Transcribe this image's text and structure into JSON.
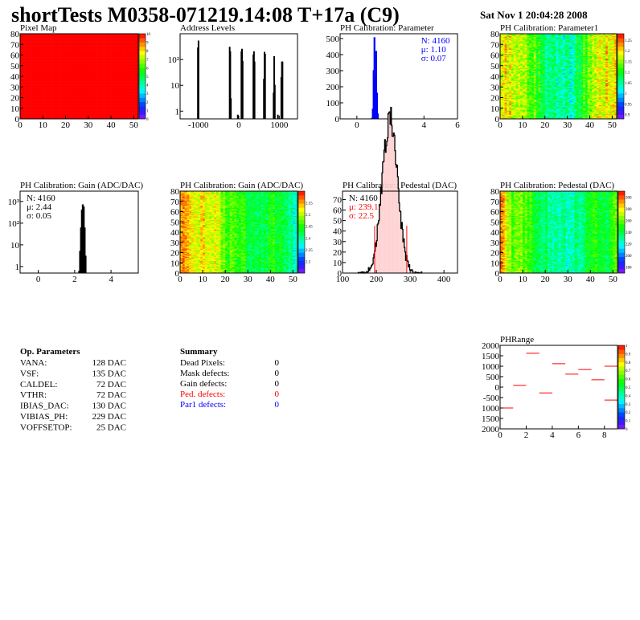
{
  "header": {
    "title": "shortTests M0358-071219.14:08 T+17a (C9)",
    "date": "Sat Nov  1 20:04:28 2008"
  },
  "chart_data": [
    {
      "type": "heatmap",
      "title": "Pixel Map",
      "xlim": [
        0,
        52
      ],
      "ylim": [
        0,
        80
      ],
      "zlim": [
        0,
        10
      ],
      "xticks": [
        0,
        10,
        20,
        30,
        40,
        50
      ],
      "yticks": [
        0,
        10,
        20,
        30,
        40,
        50,
        60,
        70,
        80
      ],
      "zticks": [
        0,
        1,
        2,
        3,
        4,
        5,
        6,
        7,
        8,
        9,
        10
      ],
      "profile": [
        10,
        10
      ],
      "noise": 0
    },
    {
      "type": "bar",
      "title": "Address Levels",
      "log_y": true,
      "xlim": [
        -1450,
        1450
      ],
      "ylim": [
        0.5,
        1000
      ],
      "xticks": [
        -1000,
        0,
        1000
      ],
      "yticks": [
        {
          "v": 1,
          "l": "1"
        },
        {
          "v": 10,
          "l": "10"
        },
        {
          "v": 100,
          "l": "10²"
        }
      ],
      "bins": [
        [
          -1010,
          280
        ],
        [
          -995,
          520
        ],
        [
          -225,
          300
        ],
        [
          -210,
          200
        ],
        [
          -195,
          3
        ],
        [
          -25,
          0.7
        ],
        [
          65,
          200
        ],
        [
          80,
          250
        ],
        [
          95,
          85
        ],
        [
          360,
          150
        ],
        [
          375,
          200
        ],
        [
          390,
          80
        ],
        [
          620,
          17
        ],
        [
          635,
          190
        ],
        [
          650,
          160
        ],
        [
          860,
          5
        ],
        [
          875,
          130
        ],
        [
          890,
          10
        ],
        [
          965,
          0.7
        ],
        [
          1050,
          20
        ],
        [
          1065,
          80
        ],
        [
          1080,
          80
        ]
      ],
      "binwidth": 15,
      "color": "#000000"
    },
    {
      "type": "bar",
      "title": "PH Calibration: Parameter",
      "xlim": [
        -1,
        6
      ],
      "ylim": [
        0,
        530
      ],
      "xticks": [
        0,
        2,
        4,
        6
      ],
      "yticks": [
        {
          "v": 0,
          "l": "0"
        },
        {
          "v": 100,
          "l": "100"
        },
        {
          "v": 200,
          "l": "200"
        },
        {
          "v": 300,
          "l": "300"
        },
        {
          "v": 400,
          "l": "400"
        },
        {
          "v": 500,
          "l": "500"
        }
      ],
      "bins": [
        [
          0.9,
          3
        ],
        [
          0.95,
          60
        ],
        [
          1.0,
          300
        ],
        [
          1.05,
          505
        ],
        [
          1.1,
          260
        ],
        [
          1.15,
          420
        ],
        [
          1.2,
          160
        ],
        [
          1.25,
          30
        ]
      ],
      "binwidth": 0.05,
      "color": "#0000ff",
      "stats": [
        {
          "t": "N: 4160",
          "c": "#0000ff"
        },
        {
          "t": "μ: 1.10",
          "c": "#0000ff"
        },
        {
          "t": "σ: 0.07",
          "c": "#0000ff"
        }
      ],
      "stats_pos": "top-right"
    },
    {
      "type": "heatmap",
      "title": "PH Calibration: Parameter1",
      "xlim": [
        0,
        52
      ],
      "ylim": [
        0,
        80
      ],
      "zlim": [
        0.88,
        1.28
      ],
      "xticks": [
        0,
        10,
        20,
        30,
        40,
        50
      ],
      "yticks": [
        0,
        10,
        20,
        30,
        40,
        50,
        60,
        70,
        80
      ],
      "zticks": [
        0.9,
        0.95,
        1,
        1.05,
        1.1,
        1.15,
        1.2,
        1.25
      ],
      "profile": [
        1.2,
        1.17,
        1.16,
        1.12,
        1.06,
        1.05,
        1.04,
        1.09,
        1.17,
        1.19,
        1.22
      ],
      "noise": 0.05
    },
    {
      "type": "bar",
      "title": "PH Calibration: Gain (ADC/DAC)",
      "log_y": true,
      "xlim": [
        -1,
        5.5
      ],
      "ylim": [
        0.5,
        3000
      ],
      "xticks": [
        0,
        2,
        4
      ],
      "yticks": [
        {
          "v": 1,
          "l": "1"
        },
        {
          "v": 10,
          "l": "10"
        },
        {
          "v": 100,
          "l": "10²"
        },
        {
          "v": 1000,
          "l": "10³"
        }
      ],
      "bins": [
        [
          2.25,
          0.6
        ],
        [
          2.3,
          5
        ],
        [
          2.35,
          60
        ],
        [
          2.4,
          400
        ],
        [
          2.45,
          700
        ],
        [
          2.5,
          550
        ],
        [
          2.55,
          60
        ],
        [
          2.6,
          3
        ]
      ],
      "binwidth": 0.05,
      "color": "#000000",
      "stats": [
        {
          "t": "N: 4160",
          "c": "#000000"
        },
        {
          "t": "μ: 2.44",
          "c": "#000000"
        },
        {
          "t": "σ: 0.05",
          "c": "#000000"
        }
      ],
      "stats_pos": "top-left"
    },
    {
      "type": "heatmap",
      "title": "PH Calibration: Gain (ADC/DAC)",
      "xlim": [
        0,
        52
      ],
      "ylim": [
        0,
        80
      ],
      "zlim": [
        2.25,
        2.6
      ],
      "xticks": [
        0,
        10,
        20,
        30,
        40,
        50
      ],
      "yticks": [
        0,
        10,
        20,
        30,
        40,
        50,
        60,
        70,
        80
      ],
      "zticks": [
        2.3,
        2.35,
        2.4,
        2.45,
        2.5,
        2.55
      ],
      "profile": [
        2.55,
        2.53,
        2.52,
        2.51,
        2.47,
        2.45,
        2.44,
        2.43,
        2.44,
        2.42,
        2.38
      ],
      "noise": 0.035
    },
    {
      "type": "hist",
      "title": "PH Calibration: Pedestal (DAC)",
      "xlim": [
        100,
        440
      ],
      "ylim": [
        0,
        78
      ],
      "xticks": [
        100,
        200,
        300,
        400
      ],
      "yticks": [
        {
          "v": 0,
          "l": "0"
        },
        {
          "v": 10,
          "l": "10"
        },
        {
          "v": 20,
          "l": "20"
        },
        {
          "v": 30,
          "l": "30"
        },
        {
          "v": 40,
          "l": "40"
        },
        {
          "v": 50,
          "l": "50"
        },
        {
          "v": 60,
          "l": "60"
        },
        {
          "v": 70,
          "l": "70"
        }
      ],
      "gauss": {
        "n": 4160,
        "mean": 239.1,
        "sigma": 22.5,
        "binwidth": 2
      },
      "cuts": [
        195,
        290
      ],
      "cut_height": 45,
      "color": "#000000",
      "cut_color": "#ff0000",
      "stats": [
        {
          "t": "N: 4160",
          "c": "#000000"
        },
        {
          "t": "μ: 239.1",
          "c": "#ff0000"
        },
        {
          "t": "σ: 22.5",
          "c": "#ff0000"
        }
      ],
      "stats_pos": "top-left"
    },
    {
      "type": "heatmap",
      "title": "PH Calibration: Pedestal (DAC)",
      "xlim": [
        0,
        52
      ],
      "ylim": [
        0,
        80
      ],
      "zlim": [
        170,
        310
      ],
      "xticks": [
        0,
        10,
        20,
        30,
        40,
        50
      ],
      "yticks": [
        0,
        10,
        20,
        30,
        40,
        50,
        60,
        70,
        80
      ],
      "zticks": [
        180,
        200,
        220,
        240,
        260,
        280,
        300
      ],
      "profile": [
        290,
        255,
        260,
        245,
        235,
        225,
        228,
        232,
        250,
        240,
        260
      ],
      "noise": 14
    },
    {
      "type": "segments",
      "title": "PHRange",
      "xlim": [
        0,
        9
      ],
      "ylim": [
        -2000,
        2000
      ],
      "zlim": [
        0,
        1
      ],
      "xticks": [
        0,
        2,
        4,
        6,
        8
      ],
      "yticks": [
        {
          "v": 2000,
          "l": "2000"
        },
        {
          "v": 1500,
          "l": "1500"
        },
        {
          "v": 1000,
          "l": "1000"
        },
        {
          "v": 500,
          "l": "500"
        },
        {
          "v": 0,
          "l": "0"
        },
        {
          "v": -500,
          "l": "-500"
        },
        {
          "v": -1000,
          "l": "1000"
        },
        {
          "v": -1500,
          "l": "1500"
        },
        {
          "v": -2000,
          "l": "2000"
        }
      ],
      "zticks": [
        0,
        0.1,
        0.2,
        0.3,
        0.4,
        0.5,
        0.6,
        0.7,
        0.8,
        0.9,
        1
      ],
      "segments": [
        [
          0,
          1,
          -1000
        ],
        [
          1,
          2,
          80
        ],
        [
          2,
          3,
          1620
        ],
        [
          3,
          4,
          -280
        ],
        [
          4,
          5,
          1120
        ],
        [
          5,
          6,
          620
        ],
        [
          6,
          7,
          840
        ],
        [
          7,
          8,
          350
        ],
        [
          8,
          9,
          1000
        ],
        [
          8,
          9,
          -620
        ]
      ],
      "color": "#ff0000"
    }
  ],
  "op_parameters": {
    "title": "Op. Parameters",
    "rows": [
      {
        "name": "VANA:",
        "value": "128 DAC"
      },
      {
        "name": "VSF:",
        "value": "135 DAC"
      },
      {
        "name": "CALDEL:",
        "value": "72 DAC"
      },
      {
        "name": "VTHR:",
        "value": "72 DAC"
      },
      {
        "name": "IBIAS_DAC:",
        "value": "130 DAC"
      },
      {
        "name": "VIBIAS_PH:",
        "value": "229 DAC"
      },
      {
        "name": "VOFFSETOP:",
        "value": "25 DAC"
      }
    ]
  },
  "summary": {
    "title": "Summary",
    "rows": [
      {
        "name": "Dead Pixels:",
        "value": "0",
        "color": "#000000"
      },
      {
        "name": "Mask defects:",
        "value": "0",
        "color": "#000000"
      },
      {
        "name": "Gain defects:",
        "value": "0",
        "color": "#000000"
      },
      {
        "name": "Ped. defects:",
        "value": "0",
        "color": "#ff0000"
      },
      {
        "name": "Par1 defects:",
        "value": "0",
        "color": "#0000ff"
      }
    ]
  }
}
